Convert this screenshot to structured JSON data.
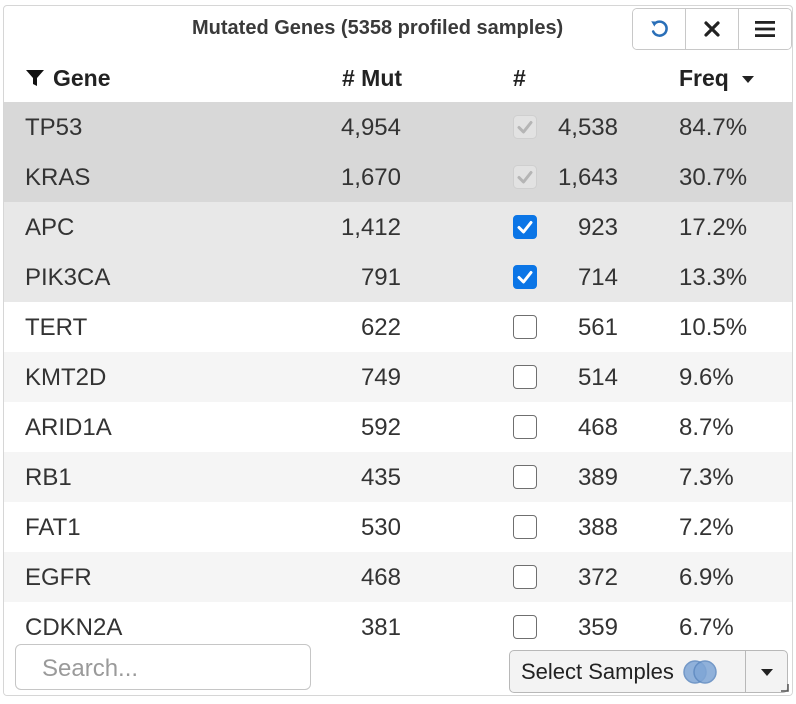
{
  "panel": {
    "title": "Mutated Genes (5358 profiled samples)",
    "toolbar": {
      "reset_icon": "undo-icon",
      "close_icon": "close-icon",
      "menu_icon": "hamburger-icon"
    },
    "accent_color": "#0b75e6"
  },
  "table": {
    "columns": {
      "gene": "Gene",
      "mut": "# Mut",
      "num": "#",
      "freq": "Freq"
    },
    "rows": [
      {
        "gene": "TP53",
        "mut": "4,954",
        "num": "4,538",
        "freq": "84.7%",
        "checkbox": "disabled"
      },
      {
        "gene": "KRAS",
        "mut": "1,670",
        "num": "1,643",
        "freq": "30.7%",
        "checkbox": "disabled"
      },
      {
        "gene": "APC",
        "mut": "1,412",
        "num": "923",
        "freq": "17.2%",
        "checkbox": "checked"
      },
      {
        "gene": "PIK3CA",
        "mut": "791",
        "num": "714",
        "freq": "13.3%",
        "checkbox": "checked"
      },
      {
        "gene": "TERT",
        "mut": "622",
        "num": "561",
        "freq": "10.5%",
        "checkbox": "unchecked"
      },
      {
        "gene": "KMT2D",
        "mut": "749",
        "num": "514",
        "freq": "9.6%",
        "checkbox": "unchecked"
      },
      {
        "gene": "ARID1A",
        "mut": "592",
        "num": "468",
        "freq": "8.7%",
        "checkbox": "unchecked"
      },
      {
        "gene": "RB1",
        "mut": "435",
        "num": "389",
        "freq": "7.3%",
        "checkbox": "unchecked"
      },
      {
        "gene": "FAT1",
        "mut": "530",
        "num": "388",
        "freq": "7.2%",
        "checkbox": "unchecked"
      },
      {
        "gene": "EGFR",
        "mut": "468",
        "num": "372",
        "freq": "6.9%",
        "checkbox": "unchecked"
      },
      {
        "gene": "CDKN2A",
        "mut": "381",
        "num": "359",
        "freq": "6.7%",
        "checkbox": "unchecked"
      }
    ]
  },
  "footer": {
    "search_placeholder": "Search...",
    "select_samples_label": "Select Samples"
  }
}
